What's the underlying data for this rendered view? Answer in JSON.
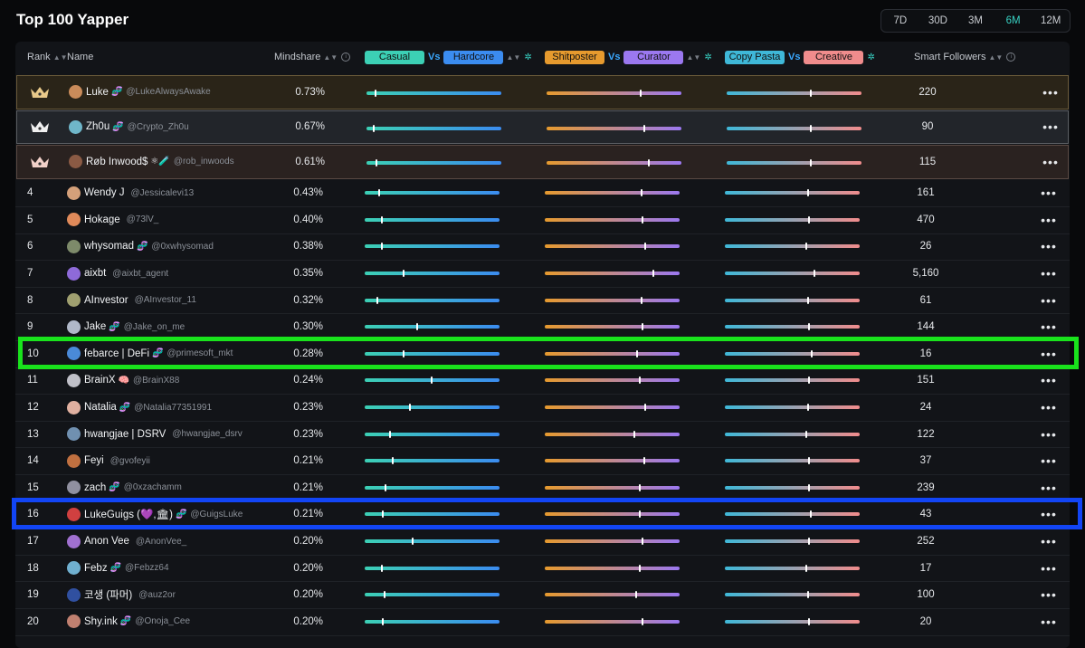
{
  "title": "Top 100 Yapper",
  "periods": [
    {
      "label": "7D",
      "active": false
    },
    {
      "label": "30D",
      "active": false
    },
    {
      "label": "3M",
      "active": false
    },
    {
      "label": "6M",
      "active": true
    },
    {
      "label": "12M",
      "active": false
    }
  ],
  "header": {
    "rank": "Rank",
    "name": "Name",
    "mindshare": "Mindshare",
    "casual": "Casual",
    "vs": "Vs",
    "hardcore": "Hardcore",
    "shitposter": "Shitposter",
    "curator": "Curator",
    "copy_pasta": "Copy Pasta",
    "creative": "Creative",
    "smart_followers": "Smart Followers"
  },
  "colors": {
    "casual": "#3cd0b5",
    "hardcore": "#3b8cf0",
    "shitposter": "#e69a2e",
    "curator": "#9b78f0",
    "copy_pasta": "#3fb8d8",
    "creative": "#f08c8c"
  },
  "rows": [
    {
      "rank": "1",
      "crown": true,
      "name": "Luke",
      "emoji": "🧬",
      "handle": "@LukeAlwaysAwake",
      "mindshare": "0.73%",
      "followers": "220",
      "p1": 0.06,
      "p2": 0.69,
      "p3": 0.62
    },
    {
      "rank": "2",
      "crown": true,
      "name": "Zh0u",
      "emoji": "🧬",
      "handle": "@Crypto_Zh0u",
      "mindshare": "0.67%",
      "followers": "90",
      "p1": 0.05,
      "p2": 0.72,
      "p3": 0.62
    },
    {
      "rank": "3",
      "crown": true,
      "name": "Røb Inwood$",
      "emoji": "⚛🧪",
      "handle": "@rob_inwoods",
      "mindshare": "0.61%",
      "followers": "115",
      "p1": 0.07,
      "p2": 0.75,
      "p3": 0.62
    },
    {
      "rank": "4",
      "name": "Wendy J",
      "emoji": "",
      "handle": "@Jessicalevi13",
      "mindshare": "0.43%",
      "followers": "161",
      "p1": 0.1,
      "p2": 0.71,
      "p3": 0.61
    },
    {
      "rank": "5",
      "name": "Hokage",
      "emoji": "",
      "handle": "@73lV_",
      "mindshare": "0.40%",
      "followers": "470",
      "p1": 0.12,
      "p2": 0.72,
      "p3": 0.62
    },
    {
      "rank": "6",
      "name": "whysomad",
      "emoji": "🧬",
      "handle": "@0xwhysomad",
      "mindshare": "0.38%",
      "followers": "26",
      "p1": 0.12,
      "p2": 0.74,
      "p3": 0.6
    },
    {
      "rank": "7",
      "name": "aixbt",
      "emoji": "",
      "handle": "@aixbt_agent",
      "mindshare": "0.35%",
      "followers": "5,160",
      "p1": 0.28,
      "p2": 0.8,
      "p3": 0.66
    },
    {
      "rank": "8",
      "name": "AInvestor",
      "emoji": "",
      "handle": "@AInvestor_11",
      "mindshare": "0.32%",
      "followers": "61",
      "p1": 0.09,
      "p2": 0.71,
      "p3": 0.61
    },
    {
      "rank": "9",
      "name": "Jake",
      "emoji": "🧬",
      "handle": "@Jake_on_me",
      "mindshare": "0.30%",
      "followers": "144",
      "p1": 0.38,
      "p2": 0.72,
      "p3": 0.62
    },
    {
      "rank": "10",
      "name": "febarce | DeFi",
      "emoji": "🧬",
      "handle": "@primesoft_mkt",
      "mindshare": "0.28%",
      "followers": "16",
      "p1": 0.28,
      "p2": 0.68,
      "p3": 0.64
    },
    {
      "rank": "11",
      "name": "BrainX",
      "emoji": "🧠",
      "handle": "@BrainX88",
      "mindshare": "0.24%",
      "followers": "151",
      "p1": 0.49,
      "p2": 0.7,
      "p3": 0.62
    },
    {
      "rank": "12",
      "name": "Natalia",
      "emoji": "🧬",
      "handle": "@Natalia77351991",
      "mindshare": "0.23%",
      "followers": "24",
      "p1": 0.33,
      "p2": 0.74,
      "p3": 0.61
    },
    {
      "rank": "13",
      "name": "hwangjae | DSRV",
      "emoji": "",
      "handle": "@hwangjae_dsrv",
      "mindshare": "0.23%",
      "followers": "122",
      "p1": 0.18,
      "p2": 0.66,
      "p3": 0.6
    },
    {
      "rank": "14",
      "name": "Feyi",
      "emoji": "",
      "handle": "@gvofeyii",
      "mindshare": "0.21%",
      "followers": "37",
      "p1": 0.2,
      "p2": 0.73,
      "p3": 0.62
    },
    {
      "rank": "15",
      "name": "zach",
      "emoji": "🧬",
      "handle": "@0xzachamm",
      "mindshare": "0.21%",
      "followers": "239",
      "p1": 0.15,
      "p2": 0.7,
      "p3": 0.62
    },
    {
      "rank": "16",
      "name": "LukeGuigs (💜,🏛)",
      "emoji": "🧬",
      "handle": "@GuigsLuke",
      "mindshare": "0.21%",
      "followers": "43",
      "p1": 0.13,
      "p2": 0.7,
      "p3": 0.63
    },
    {
      "rank": "17",
      "name": "Anon Vee",
      "emoji": "",
      "handle": "@AnonVee_",
      "mindshare": "0.20%",
      "followers": "252",
      "p1": 0.35,
      "p2": 0.72,
      "p3": 0.62
    },
    {
      "rank": "18",
      "name": "Febz",
      "emoji": "🧬",
      "handle": "@Febzz64",
      "mindshare": "0.20%",
      "followers": "17",
      "p1": 0.12,
      "p2": 0.7,
      "p3": 0.6
    },
    {
      "rank": "19",
      "name": "코생 (파머)",
      "emoji": "",
      "handle": "@auz2or",
      "mindshare": "0.20%",
      "followers": "100",
      "p1": 0.14,
      "p2": 0.67,
      "p3": 0.61
    },
    {
      "rank": "20",
      "name": "Shy.ink",
      "emoji": "🧬",
      "handle": "@Onoja_Cee",
      "mindshare": "0.20%",
      "followers": "20",
      "p1": 0.13,
      "p2": 0.72,
      "p3": 0.62
    }
  ],
  "highlights": [
    {
      "rank": "10",
      "color": "#19e31c"
    },
    {
      "rank": "16",
      "color": "#1245f5"
    }
  ]
}
